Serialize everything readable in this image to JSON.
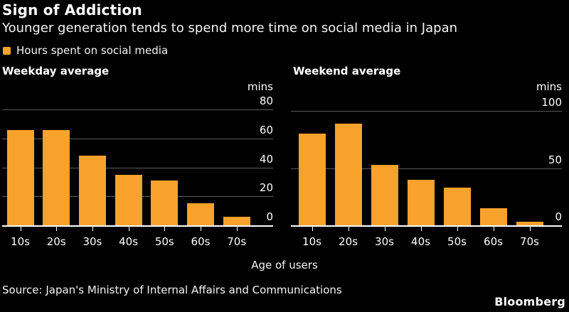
{
  "header": {
    "title": "Sign of Addiction",
    "subtitle": "Younger generation tends to spend more time on social media in Japan"
  },
  "legend": {
    "label": "Hours spent on social media",
    "swatch_color": "#F9A22B"
  },
  "xaxis_label": "Age of users",
  "footer": {
    "source": "Source: Japan's Ministry of Internal Affairs and Communications",
    "brand": "Bloomberg"
  },
  "colors": {
    "background": "#000000",
    "text": "#FFFFFF",
    "bar": "#F9A22B",
    "gridline": "#5A5A5A",
    "axis_line": "#FFFFFF"
  },
  "chart_data": [
    {
      "type": "bar",
      "title": "Weekday average",
      "unit": "mins",
      "categories": [
        "10s",
        "20s",
        "30s",
        "40s",
        "50s",
        "60s",
        "70s"
      ],
      "values": [
        66,
        66,
        48,
        35,
        31,
        15,
        6
      ],
      "ylim": [
        0,
        80
      ],
      "yticks": [
        0,
        20,
        40,
        60,
        80
      ],
      "xlabel": "Age of users",
      "grid": "horizontal",
      "tick_label_side": "right",
      "bar_color": "#F9A22B"
    },
    {
      "type": "bar",
      "title": "Weekend average",
      "unit": "mins",
      "categories": [
        "10s",
        "20s",
        "30s",
        "40s",
        "50s",
        "60s",
        "70s"
      ],
      "values": [
        80,
        89,
        53,
        40,
        33,
        15,
        3
      ],
      "ylim": [
        0,
        100
      ],
      "yticks": [
        0,
        50,
        100
      ],
      "xlabel": "Age of users",
      "grid": "horizontal",
      "tick_label_side": "right",
      "bar_color": "#F9A22B"
    }
  ]
}
